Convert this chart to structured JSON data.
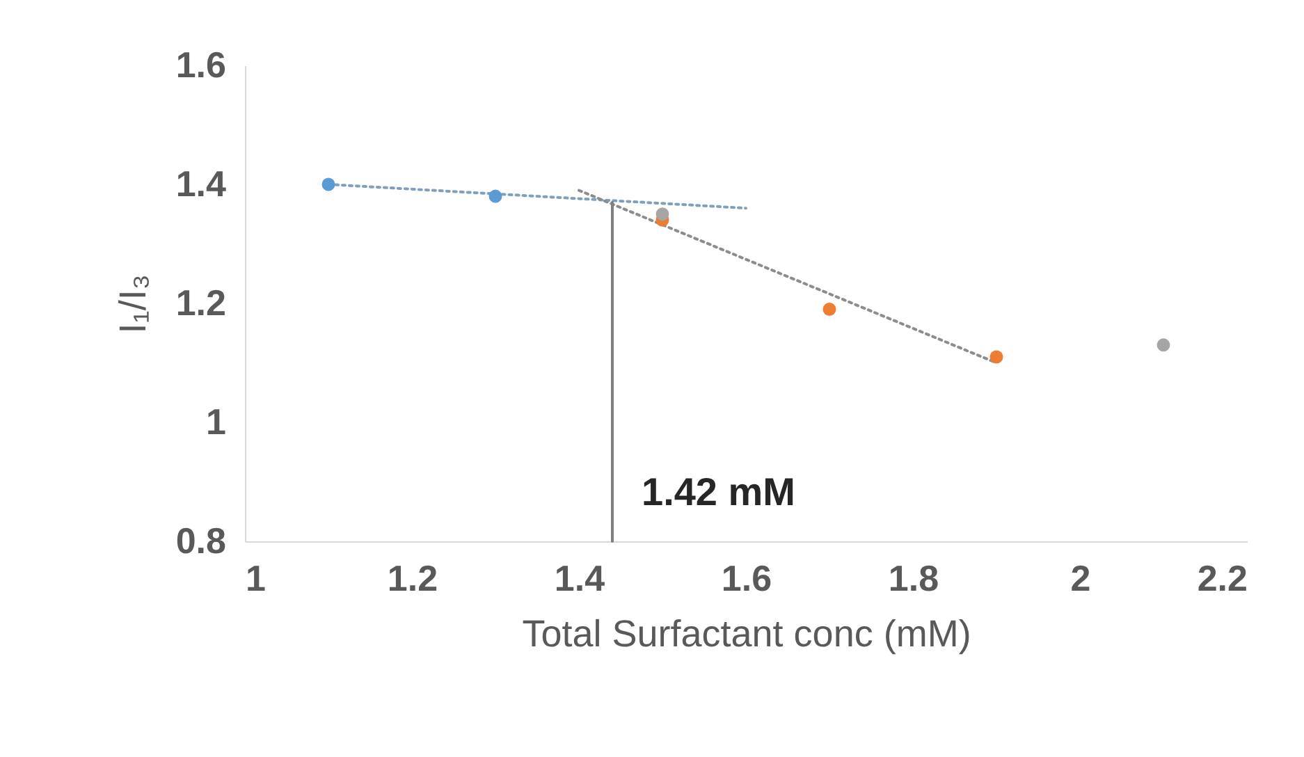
{
  "chart_data": {
    "type": "scatter",
    "xlabel": "Total Surfactant conc (mM)",
    "ylabel": "I₁/I₃",
    "xlim": [
      1,
      2.2
    ],
    "xticks": [
      1,
      1.2,
      1.4,
      1.6,
      1.8,
      2,
      2.2
    ],
    "ylim": [
      0.8,
      1.6
    ],
    "yticks": [
      0.8,
      1,
      1.2,
      1.4,
      1.6
    ],
    "grid": false,
    "series": [
      {
        "type": "line",
        "color": "#7f9fbf",
        "line_style": "dotted",
        "marker": "none",
        "x": [
          1.1,
          1.6
        ],
        "values": [
          1.4,
          1.36
        ]
      },
      {
        "type": "line",
        "color": "#8c8c8c",
        "line_style": "dotted",
        "marker": "none",
        "x": [
          1.4,
          1.9
        ],
        "values": [
          1.39,
          1.1
        ]
      },
      {
        "type": "line",
        "color": "#808080",
        "line_style": "solid",
        "marker": "none",
        "x": [
          1.44,
          1.44
        ],
        "values": [
          1.37,
          0.8
        ]
      },
      {
        "color": "#5b9bd5",
        "marker": "circle",
        "x": [
          1.1,
          1.3
        ],
        "values": [
          1.4,
          1.38
        ]
      },
      {
        "color": "#ed7d31",
        "marker": "circle",
        "x": [
          1.5,
          1.7,
          1.9
        ],
        "values": [
          1.34,
          1.19,
          1.11
        ]
      },
      {
        "color": "#a5a5a5",
        "marker": "circle",
        "x": [
          1.5,
          2.1
        ],
        "values": [
          1.35,
          1.13
        ]
      }
    ],
    "annotations": [
      "1.42 mM"
    ]
  }
}
